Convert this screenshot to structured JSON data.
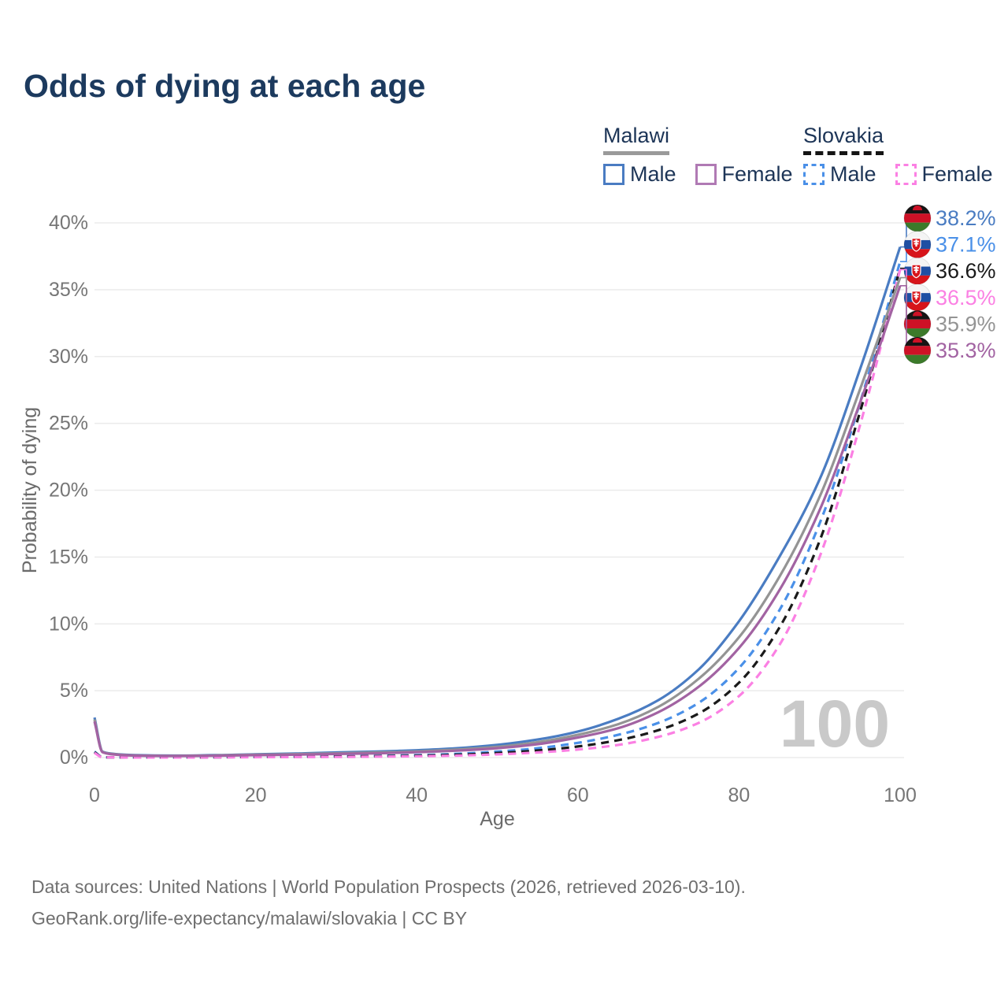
{
  "title": "Odds of dying at each age",
  "legend": {
    "groups": [
      {
        "label": "Malawi",
        "underline_style": "solid",
        "underline_color": "#9a9a9a",
        "items": [
          {
            "label": "Male",
            "color": "#4a7cc2",
            "dash": false
          },
          {
            "label": "Female",
            "color": "#b07ab4",
            "dash": false
          }
        ]
      },
      {
        "label": "Slovakia",
        "underline_style": "dashed",
        "underline_color": "#151515",
        "items": [
          {
            "label": "Male",
            "color": "#4a90e8",
            "dash": true
          },
          {
            "label": "Female",
            "color": "#fb80e3",
            "dash": true
          }
        ]
      }
    ]
  },
  "chart_data": {
    "type": "line",
    "title": "Odds of dying at each age",
    "xlabel": "Age",
    "ylabel": "Probability of dying",
    "xlim": [
      0,
      100
    ],
    "ylim": [
      0,
      40
    ],
    "grid": "horizontal",
    "legend_position": "top-right",
    "x_ticks": [
      "0",
      "20",
      "40",
      "60",
      "80",
      "100"
    ],
    "x_tick_values": [
      0,
      20,
      40,
      60,
      80,
      100
    ],
    "y_ticks": [
      "0%",
      "5%",
      "10%",
      "15%",
      "20%",
      "25%",
      "30%",
      "35%",
      "40%"
    ],
    "y_tick_values": [
      0,
      5,
      10,
      15,
      20,
      25,
      30,
      35,
      40
    ],
    "ages": [
      0,
      1,
      2,
      5,
      10,
      15,
      20,
      25,
      30,
      35,
      40,
      45,
      50,
      55,
      60,
      65,
      70,
      75,
      80,
      85,
      90,
      95,
      100
    ],
    "series": [
      {
        "name": "Malawi Male",
        "country": "malawi",
        "sex": "Male",
        "color": "#4a7cc2",
        "dash": false,
        "end_label": "38.2%",
        "values": [
          3.0,
          0.45,
          0.3,
          0.18,
          0.15,
          0.18,
          0.25,
          0.3,
          0.38,
          0.45,
          0.55,
          0.7,
          0.95,
          1.35,
          1.95,
          2.9,
          4.3,
          6.6,
          10.2,
          15.0,
          20.8,
          29.0,
          38.2
        ]
      },
      {
        "name": "Slovakia Male",
        "country": "slovakia",
        "sex": "Male",
        "color": "#4a90e8",
        "dash": true,
        "end_label": "37.1%",
        "values": [
          0.45,
          0.03,
          0.02,
          0.01,
          0.01,
          0.03,
          0.06,
          0.08,
          0.1,
          0.13,
          0.18,
          0.28,
          0.45,
          0.7,
          1.1,
          1.7,
          2.6,
          4.1,
          6.7,
          11.0,
          17.5,
          26.5,
          37.1
        ]
      },
      {
        "name": "Slovakia",
        "country": "slovakia",
        "sex": "Both",
        "color": "#1a1a1a",
        "dash": true,
        "end_label": "36.6%",
        "values": [
          0.4,
          0.025,
          0.018,
          0.01,
          0.01,
          0.02,
          0.045,
          0.06,
          0.075,
          0.1,
          0.14,
          0.21,
          0.34,
          0.53,
          0.83,
          1.3,
          2.05,
          3.3,
          5.6,
          9.7,
          16.2,
          25.8,
          36.6
        ]
      },
      {
        "name": "Slovakia Female",
        "country": "slovakia",
        "sex": "Female",
        "color": "#fb80e3",
        "dash": true,
        "end_label": "36.5%",
        "values": [
          0.35,
          0.02,
          0.015,
          0.008,
          0.008,
          0.015,
          0.03,
          0.04,
          0.05,
          0.07,
          0.1,
          0.15,
          0.24,
          0.38,
          0.6,
          0.95,
          1.55,
          2.6,
          4.6,
          8.4,
          15.0,
          24.8,
          36.5
        ]
      },
      {
        "name": "Malawi",
        "country": "malawi",
        "sex": "Both",
        "color": "#949494",
        "dash": false,
        "end_label": "35.9%",
        "values": [
          2.85,
          0.42,
          0.28,
          0.16,
          0.13,
          0.16,
          0.21,
          0.26,
          0.32,
          0.38,
          0.46,
          0.6,
          0.8,
          1.15,
          1.7,
          2.5,
          3.8,
          5.9,
          9.0,
          13.5,
          19.5,
          27.5,
          35.9
        ]
      },
      {
        "name": "Malawi Female",
        "country": "malawi",
        "sex": "Female",
        "color": "#a263a2",
        "dash": false,
        "end_label": "35.3%",
        "values": [
          2.7,
          0.4,
          0.26,
          0.15,
          0.12,
          0.14,
          0.18,
          0.22,
          0.27,
          0.32,
          0.4,
          0.52,
          0.7,
          1.0,
          1.5,
          2.2,
          3.4,
          5.3,
          8.2,
          12.5,
          18.5,
          26.5,
          35.3
        ]
      }
    ],
    "annotation": {
      "age_counter": "100"
    }
  },
  "footer": {
    "line1": "Data sources: United Nations | World Population Prospects (2026, retrieved 2026-03-10).",
    "line2": "GeoRank.org/life-expectancy/malawi/slovakia | CC BY"
  },
  "colors": {
    "title_text": "#1c3a5e",
    "axis_text": "#767676",
    "gridline": "#ebebeb",
    "watermark": "#c9c9c9",
    "malawi_flag": {
      "black": "#161414",
      "red": "#ce1126",
      "green": "#3c7a2a"
    },
    "slovakia_flag": {
      "white": "#f4f4f4",
      "blue": "#1f4fa3",
      "red": "#d7141a",
      "shield": "#d7141a"
    }
  }
}
